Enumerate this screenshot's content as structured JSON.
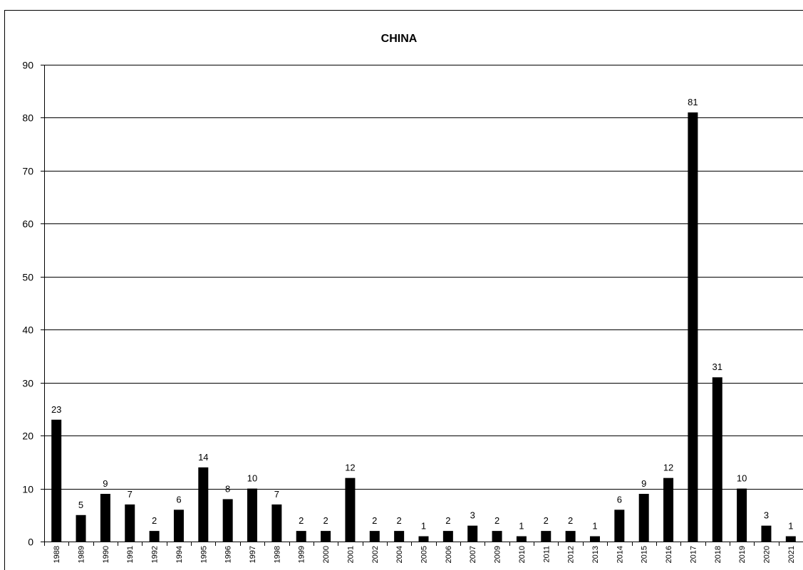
{
  "chart_data": {
    "type": "bar",
    "title": "CHINA",
    "xlabel": "",
    "ylabel": "",
    "ylim": [
      0,
      90
    ],
    "y_ticks": [
      "0",
      "10",
      "20",
      "30",
      "40",
      "50",
      "60",
      "70",
      "80",
      "90"
    ],
    "grid": true,
    "bar_color": "#000000",
    "categories": [
      "1988",
      "1989",
      "1990",
      "1991",
      "1992",
      "1994",
      "1995",
      "1996",
      "1997",
      "1998",
      "1999",
      "2000",
      "2001",
      "2002",
      "2004",
      "2005",
      "2006",
      "2007",
      "2009",
      "2010",
      "2011",
      "2012",
      "2013",
      "2014",
      "2015",
      "2016",
      "2017",
      "2018",
      "2019",
      "2020",
      "2021"
    ],
    "values": [
      23,
      5,
      9,
      7,
      2,
      6,
      14,
      8,
      10,
      7,
      2,
      2,
      12,
      2,
      2,
      1,
      2,
      3,
      2,
      1,
      2,
      2,
      1,
      6,
      9,
      12,
      81,
      31,
      10,
      3,
      1
    ]
  }
}
